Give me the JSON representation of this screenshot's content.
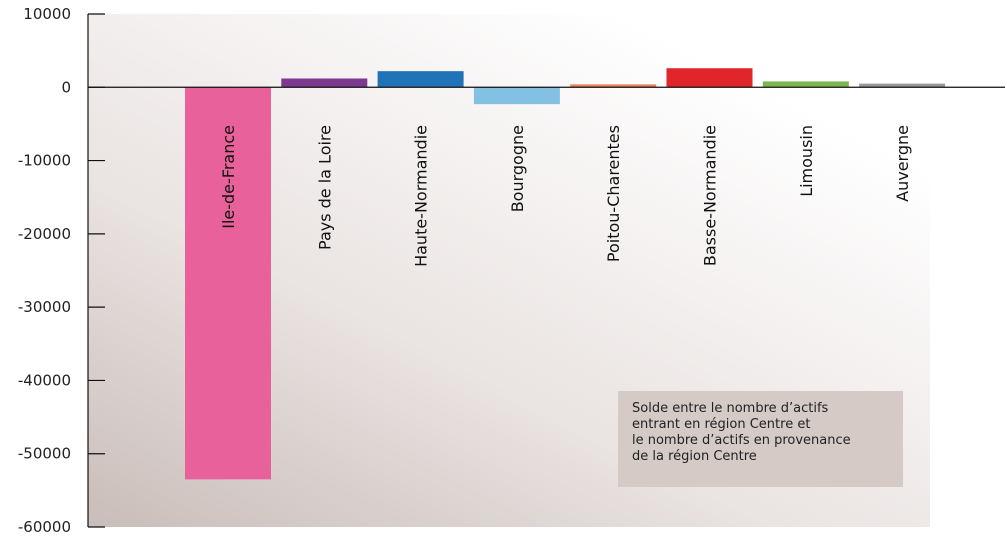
{
  "chart_data": {
    "type": "bar",
    "categories": [
      "Ile-de-France",
      "Pays de la Loire",
      "Haute-Normandie",
      "Bourgogne",
      "Poitou-Charentes",
      "Basse-Normandie",
      "Limousin",
      "Auvergne"
    ],
    "values": [
      -53500,
      1200,
      2200,
      -2300,
      400,
      2600,
      800,
      500
    ],
    "colors": [
      "#e8619b",
      "#7b3a8f",
      "#1f73b6",
      "#84bfe4",
      "#e8825a",
      "#e0262a",
      "#7fb654",
      "#999999"
    ],
    "ylim": [
      -60000,
      10000
    ],
    "yticks": [
      10000,
      0,
      -10000,
      -20000,
      -30000,
      -40000,
      -50000,
      -60000
    ],
    "ytick_labels": [
      "10000",
      "0",
      "-10000",
      "-20000",
      "-30000",
      "-40000",
      "-50000",
      "-60000"
    ],
    "grid": false,
    "legend": null,
    "annotation": [
      "Solde entre le nombre d’actifs",
      "entrant en région Centre et",
      "le nombre d’actifs en provenance",
      "de la région Centre"
    ]
  }
}
